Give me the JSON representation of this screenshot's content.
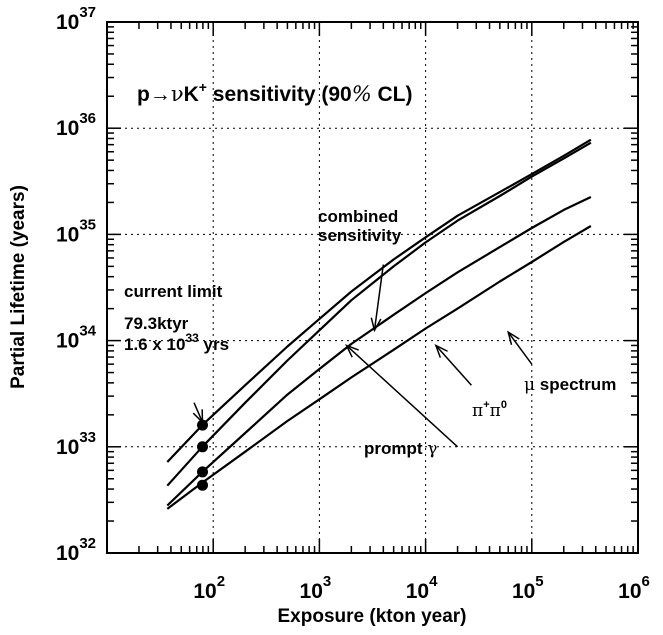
{
  "chart_data": {
    "type": "line",
    "title_parts": {
      "proton": "p",
      "arrow": "→",
      "nu": "ν",
      "kaon": "K",
      "kaon_charge": "+",
      "rest": " sensitivity (90",
      "percent": "%",
      "cl": " CL)"
    },
    "xlabel": "Exposure (kton year)",
    "ylabel": "Partial Lifetime (years)",
    "x_scale": "log",
    "y_scale": "log",
    "xlim": [
      10,
      1000000
    ],
    "ylim": [
      1e+32,
      1e+37
    ],
    "grid": true,
    "x_ticks": [
      {
        "base": "10",
        "exp": "2",
        "value": 100
      },
      {
        "base": "10",
        "exp": "3",
        "value": 1000
      },
      {
        "base": "10",
        "exp": "4",
        "value": 10000
      },
      {
        "base": "10",
        "exp": "5",
        "value": 100000
      },
      {
        "base": "10",
        "exp": "6",
        "value": 1000000
      }
    ],
    "y_ticks": [
      {
        "base": "10",
        "exp": "32",
        "value": 1e+32
      },
      {
        "base": "10",
        "exp": "33",
        "value": 1e+33
      },
      {
        "base": "10",
        "exp": "34",
        "value": 1e+34
      },
      {
        "base": "10",
        "exp": "35",
        "value": 1e+35
      },
      {
        "base": "10",
        "exp": "36",
        "value": 1e+36
      },
      {
        "base": "10",
        "exp": "37",
        "value": 1e+37
      }
    ],
    "series": [
      {
        "key": "combined_upper",
        "x": [
          37,
          79,
          200,
          500,
          1000,
          2000,
          5000,
          10000,
          20000,
          50000,
          100000,
          200000,
          360000
        ],
        "y": [
          7.2e+32,
          1.6e+33,
          3.8e+33,
          8.8e+33,
          1.6e+34,
          2.9e+34,
          5.8e+34,
          9.4e+34,
          1.5e+35,
          2.5e+35,
          3.7e+35,
          5.5e+35,
          7.8e+35
        ]
      },
      {
        "key": "combined_lower",
        "x": [
          37,
          79,
          200,
          500,
          1000,
          2000,
          5000,
          10000,
          20000,
          50000,
          100000,
          200000,
          360000
        ],
        "y": [
          4.3e+32,
          1e+33,
          2.6e+33,
          6.5e+33,
          1.25e+34,
          2.4e+34,
          5e+34,
          8.4e+34,
          1.35e+35,
          2.3e+35,
          3.5e+35,
          5.2e+35,
          7.3e+35
        ]
      },
      {
        "key": "pi_pi0",
        "x": [
          37,
          79,
          200,
          500,
          1000,
          2000,
          5000,
          10000,
          20000,
          50000,
          100000,
          200000,
          360000
        ],
        "y": [
          2.8e+32,
          5.8e+32,
          1.35e+33,
          3.1e+33,
          5.4e+33,
          9.3e+33,
          1.75e+34,
          2.8e+34,
          4.4e+34,
          7.6e+34,
          1.15e+35,
          1.7e+35,
          2.25e+35
        ]
      },
      {
        "key": "mu_spectrum",
        "x": [
          37,
          79,
          200,
          500,
          1000,
          2000,
          5000,
          10000,
          20000,
          50000,
          100000,
          200000,
          360000
        ],
        "y": [
          2.6e+32,
          4.6e+32,
          9e+32,
          1.75e+33,
          2.8e+33,
          4.5e+33,
          8.2e+33,
          1.3e+34,
          2e+34,
          3.6e+34,
          5.5e+34,
          8.5e+34,
          1.2e+35
        ]
      }
    ],
    "points": {
      "x": [
        79.3,
        79.3,
        79.3,
        79.3
      ],
      "y": [
        1.6e+33,
        1e+33,
        5.8e+32,
        4.35e+32
      ]
    },
    "annotations": {
      "combined_line1": "combined",
      "combined_line2": "sensitivity",
      "current_limit": "current limit",
      "exposure_value": "79.3ktyr",
      "limit_prefix": "1.6 x 10",
      "limit_exp": "33",
      "limit_suffix": " yrs",
      "pi_plus": "π",
      "pi_plus_charge": "+",
      "pi_zero": "π",
      "pi_zero_charge": "0",
      "prompt": "prompt ",
      "gamma": "γ",
      "mu": "μ",
      "spectrum": " spectrum"
    },
    "arrows": [
      {
        "key": "arrow-combined",
        "from": [
          4000,
          5.2e+34
        ],
        "to": [
          3300,
          1.25e+34
        ]
      },
      {
        "key": "arrow-current-limit",
        "from": [
          66,
          2.6e+33
        ],
        "to": [
          79.3,
          1.7e+33
        ]
      },
      {
        "key": "arrow-prompt",
        "from": [
          20000,
          1e+33
        ],
        "to": [
          1800,
          9e+33
        ]
      },
      {
        "key": "arrow-pipi0",
        "from": [
          27000,
          3.8e+33
        ],
        "to": [
          12500,
          9e+33
        ]
      },
      {
        "key": "arrow-mu",
        "from": [
          100000,
          6e+33
        ],
        "to": [
          60000,
          1.2e+34
        ]
      }
    ]
  }
}
